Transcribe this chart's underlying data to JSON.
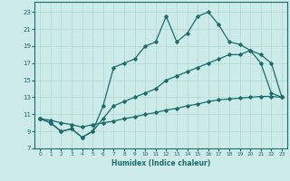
{
  "xlabel": "Humidex (Indice chaleur)",
  "bg_color": "#cceae7",
  "line_color": "#1a6b6b",
  "grid_color": "#b0d8d4",
  "x_ticks": [
    0,
    1,
    2,
    3,
    4,
    5,
    6,
    7,
    8,
    9,
    10,
    11,
    12,
    13,
    14,
    15,
    16,
    17,
    18,
    19,
    20,
    21,
    22,
    23
  ],
  "y_ticks": [
    7,
    9,
    11,
    13,
    15,
    17,
    19,
    21,
    23
  ],
  "xlim": [
    -0.5,
    23.5
  ],
  "ylim": [
    7,
    24.2
  ],
  "line1_x": [
    0,
    1,
    2,
    3,
    4,
    5,
    6,
    7,
    8,
    9,
    10,
    11,
    12,
    13,
    14,
    15,
    16,
    17,
    18,
    19,
    20,
    21,
    22,
    23
  ],
  "line1_y": [
    10.5,
    10.0,
    9.0,
    9.3,
    8.3,
    9.0,
    12.0,
    16.5,
    17.0,
    17.5,
    19.0,
    19.5,
    22.5,
    19.5,
    20.5,
    22.5,
    23.0,
    21.5,
    19.5,
    19.2,
    18.5,
    17.0,
    13.5,
    13.0
  ],
  "line2_x": [
    0,
    1,
    2,
    3,
    4,
    5,
    6,
    7,
    8,
    9,
    10,
    11,
    12,
    13,
    14,
    15,
    16,
    17,
    18,
    19,
    20,
    21,
    22,
    23
  ],
  "line2_y": [
    10.5,
    10.0,
    9.0,
    9.3,
    8.3,
    9.0,
    10.5,
    12.0,
    12.5,
    13.0,
    13.5,
    14.0,
    15.0,
    15.5,
    16.0,
    16.5,
    17.0,
    17.5,
    18.0,
    18.0,
    18.5,
    18.0,
    17.0,
    13.0
  ],
  "line3_x": [
    0,
    1,
    2,
    3,
    4,
    5,
    6,
    7,
    8,
    9,
    10,
    11,
    12,
    13,
    14,
    15,
    16,
    17,
    18,
    19,
    20,
    21,
    22,
    23
  ],
  "line3_y": [
    10.5,
    10.3,
    10.0,
    9.8,
    9.5,
    9.8,
    10.0,
    10.2,
    10.5,
    10.7,
    11.0,
    11.2,
    11.5,
    11.7,
    12.0,
    12.2,
    12.5,
    12.7,
    12.8,
    12.9,
    13.0,
    13.1,
    13.1,
    13.0
  ]
}
